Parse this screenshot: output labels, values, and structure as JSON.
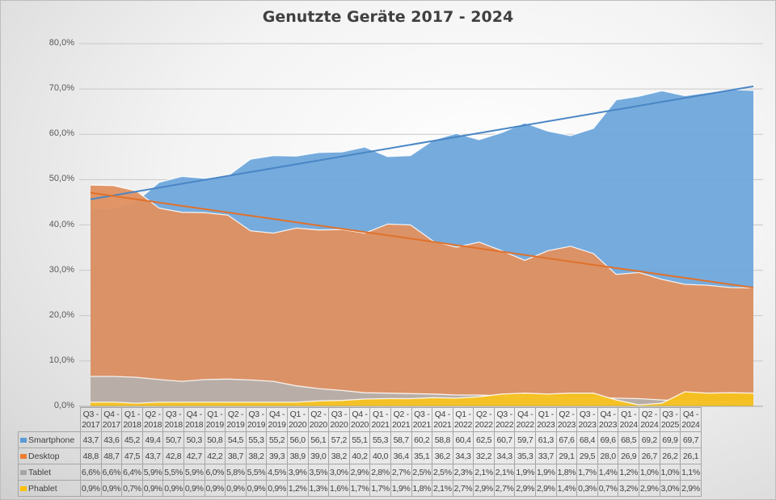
{
  "chart_data": {
    "type": "area",
    "title": "Genutzte Geräte 2017 - 2024",
    "xlabel": "",
    "ylabel": "",
    "ylim": [
      0,
      80
    ],
    "y_ticks": [
      "0,0%",
      "10,0%",
      "20,0%",
      "30,0%",
      "40,0%",
      "50,0%",
      "60,0%",
      "70,0%",
      "80,0%"
    ],
    "grid": true,
    "legend_position": "data-table",
    "categories": [
      "Q3 - 2017",
      "Q4 - 2017",
      "Q1 - 2018",
      "Q2 - 2018",
      "Q3 - 2018",
      "Q4 - 2018",
      "Q1 - 2019",
      "Q2 - 2019",
      "Q3 - 2019",
      "Q4 - 2019",
      "Q1 - 2020",
      "Q2 - 2020",
      "Q3 - 2020",
      "Q4 - 2020",
      "Q1 - 2021",
      "Q2 - 2021",
      "Q3 - 2021",
      "Q4 - 2021",
      "Q1 - 2022",
      "Q2 - 2022",
      "Q3 - 2022",
      "Q4 - 2022",
      "Q1 - 2023",
      "Q2 - 2023",
      "Q3 - 2023",
      "Q4 - 2023",
      "Q1 - 2024",
      "Q2 - 2024",
      "Q3 - 2025",
      "Q4 - 2024"
    ],
    "category_lines": [
      [
        "Q3 -",
        "2017"
      ],
      [
        "Q4 -",
        "2017"
      ],
      [
        "Q1 -",
        "2018"
      ],
      [
        "Q2 -",
        "2018"
      ],
      [
        "Q3 -",
        "2018"
      ],
      [
        "Q4 -",
        "2018"
      ],
      [
        "Q1 -",
        "2019"
      ],
      [
        "Q2 -",
        "2019"
      ],
      [
        "Q3 -",
        "2019"
      ],
      [
        "Q4 -",
        "2019"
      ],
      [
        "Q1 -",
        "2020"
      ],
      [
        "Q2 -",
        "2020"
      ],
      [
        "Q3 -",
        "2020"
      ],
      [
        "Q4 -",
        "2020"
      ],
      [
        "Q1 -",
        "2021"
      ],
      [
        "Q2 -",
        "2021"
      ],
      [
        "Q3 -",
        "2021"
      ],
      [
        "Q4 -",
        "2021"
      ],
      [
        "Q1 -",
        "2022"
      ],
      [
        "Q2 -",
        "2022"
      ],
      [
        "Q3 -",
        "2022"
      ],
      [
        "Q4 -",
        "2022"
      ],
      [
        "Q1 -",
        "2023"
      ],
      [
        "Q2 -",
        "2023"
      ],
      [
        "Q3 -",
        "2023"
      ],
      [
        "Q4 -",
        "2023"
      ],
      [
        "Q1 -",
        "2024"
      ],
      [
        "Q2 -",
        "2024"
      ],
      [
        "Q3 -",
        "2025"
      ],
      [
        "Q4 -",
        "2024"
      ]
    ],
    "series": [
      {
        "name": "Smartphone",
        "color": "#5b9bd5",
        "values": [
          43.7,
          43.6,
          45.2,
          49.4,
          50.7,
          50.3,
          50.8,
          54.5,
          55.3,
          55.2,
          56.0,
          56.1,
          57.2,
          55.1,
          55.3,
          58.7,
          60.2,
          58.8,
          60.4,
          62.5,
          60.7,
          59.7,
          61.3,
          67.6,
          68.4,
          69.6,
          68.5,
          69.2,
          69.9,
          69.7
        ],
        "labels": [
          "43,7",
          "43,6",
          "45,2",
          "49,4",
          "50,7",
          "50,3",
          "50,8",
          "54,5",
          "55,3",
          "55,2",
          "56,0",
          "56,1",
          "57,2",
          "55,1",
          "55,3",
          "58,7",
          "60,2",
          "58,8",
          "60,4",
          "62,5",
          "60,7",
          "59,7",
          "61,3",
          "67,6",
          "68,4",
          "69,6",
          "68,5",
          "69,2",
          "69,9",
          "69,7"
        ]
      },
      {
        "name": "Desktop",
        "color": "#ed7d31",
        "values": [
          48.8,
          48.7,
          47.5,
          43.7,
          42.8,
          42.7,
          42.2,
          38.7,
          38.2,
          39.3,
          38.9,
          39.0,
          38.2,
          40.2,
          40.0,
          36.4,
          35.1,
          36.2,
          34.3,
          32.2,
          34.3,
          35.3,
          33.7,
          29.1,
          29.5,
          28.0,
          26.9,
          26.7,
          26.2,
          26.1
        ],
        "labels": [
          "48,8",
          "48,7",
          "47,5",
          "43,7",
          "42,8",
          "42,7",
          "42,2",
          "38,7",
          "38,2",
          "39,3",
          "38,9",
          "39,0",
          "38,2",
          "40,2",
          "40,0",
          "36,4",
          "35,1",
          "36,2",
          "34,3",
          "32,2",
          "34,3",
          "35,3",
          "33,7",
          "29,1",
          "29,5",
          "28,0",
          "26,9",
          "26,7",
          "26,2",
          "26,1"
        ]
      },
      {
        "name": "Tablet",
        "color": "#a5a5a5",
        "values": [
          6.6,
          6.6,
          6.4,
          5.9,
          5.5,
          5.9,
          6.0,
          5.8,
          5.5,
          4.5,
          3.9,
          3.5,
          3.0,
          2.9,
          2.8,
          2.7,
          2.5,
          2.5,
          2.3,
          2.1,
          2.1,
          1.9,
          1.9,
          1.8,
          1.7,
          1.4,
          1.2,
          1.0,
          1.0,
          1.1
        ],
        "labels": [
          "6,6%",
          "6,6%",
          "6,4%",
          "5,9%",
          "5,5%",
          "5,9%",
          "6,0%",
          "5,8%",
          "5,5%",
          "4,5%",
          "3,9%",
          "3,5%",
          "3,0%",
          "2,9%",
          "2,8%",
          "2,7%",
          "2,5%",
          "2,5%",
          "2,3%",
          "2,1%",
          "2,1%",
          "1,9%",
          "1,9%",
          "1,8%",
          "1,7%",
          "1,4%",
          "1,2%",
          "1,0%",
          "1,0%",
          "1,1%"
        ]
      },
      {
        "name": "Phablet",
        "color": "#ffc000",
        "values": [
          0.9,
          0.9,
          0.7,
          0.9,
          0.9,
          0.9,
          0.9,
          0.9,
          0.9,
          0.9,
          1.2,
          1.3,
          1.6,
          1.7,
          1.7,
          1.9,
          1.8,
          2.1,
          2.7,
          2.9,
          2.7,
          2.9,
          2.9,
          1.4,
          0.3,
          0.7,
          3.2,
          2.9,
          3.0,
          2.9
        ],
        "labels": [
          "0,9%",
          "0,9%",
          "0,7%",
          "0,9%",
          "0,9%",
          "0,9%",
          "0,9%",
          "0,9%",
          "0,9%",
          "0,9%",
          "1,2%",
          "1,3%",
          "1,6%",
          "1,7%",
          "1,7%",
          "1,9%",
          "1,8%",
          "2,1%",
          "2,7%",
          "2,9%",
          "2,7%",
          "2,9%",
          "2,9%",
          "1,4%",
          "0,3%",
          "0,7%",
          "3,2%",
          "2,9%",
          "3,0%",
          "2,9%"
        ]
      }
    ],
    "trendlines": [
      {
        "series": "Smartphone",
        "type": "linear",
        "color": "#4a86c5"
      },
      {
        "series": "Desktop",
        "type": "linear",
        "color": "#e0712b"
      }
    ]
  }
}
